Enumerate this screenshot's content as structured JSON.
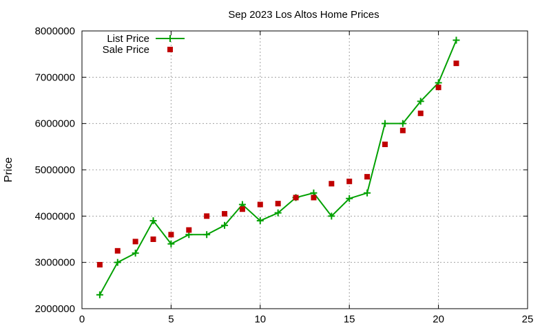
{
  "chart_data": {
    "type": "line",
    "title": "Sep 2023 Los Altos Home Prices",
    "xlabel": "",
    "ylabel": "Price",
    "xlim": [
      0,
      25
    ],
    "ylim": [
      2000000,
      8000000
    ],
    "xticks": [
      "0",
      "5",
      "10",
      "15",
      "20",
      "25"
    ],
    "yticks": [
      "2000000",
      "3000000",
      "4000000",
      "5000000",
      "6000000",
      "7000000",
      "8000000"
    ],
    "grid": true,
    "legend_position": "top-left",
    "series": [
      {
        "name": "List Price",
        "style": "line-plus",
        "color": "#00a000",
        "x": [
          1,
          2,
          3,
          4,
          5,
          6,
          7,
          8,
          9,
          10,
          11,
          12,
          13,
          14,
          15,
          16,
          17,
          18,
          19,
          20,
          21
        ],
        "y": [
          2300000,
          3000000,
          3200000,
          3900000,
          3400000,
          3600000,
          3600000,
          3800000,
          4250000,
          3900000,
          4070000,
          4400000,
          4500000,
          4000000,
          4380000,
          4500000,
          6000000,
          6000000,
          6480000,
          6880000,
          7800000
        ]
      },
      {
        "name": "Sale Price",
        "style": "square",
        "color": "#c00000",
        "x": [
          1,
          2,
          3,
          4,
          5,
          6,
          7,
          8,
          9,
          10,
          11,
          12,
          13,
          14,
          15,
          16,
          17,
          18,
          19,
          20,
          21
        ],
        "y": [
          2950000,
          3250000,
          3450000,
          3500000,
          3600000,
          3700000,
          4000000,
          4050000,
          4150000,
          4250000,
          4270000,
          4400000,
          4400000,
          4700000,
          4750000,
          4850000,
          5550000,
          5850000,
          6220000,
          6780000,
          7300000
        ]
      }
    ]
  }
}
